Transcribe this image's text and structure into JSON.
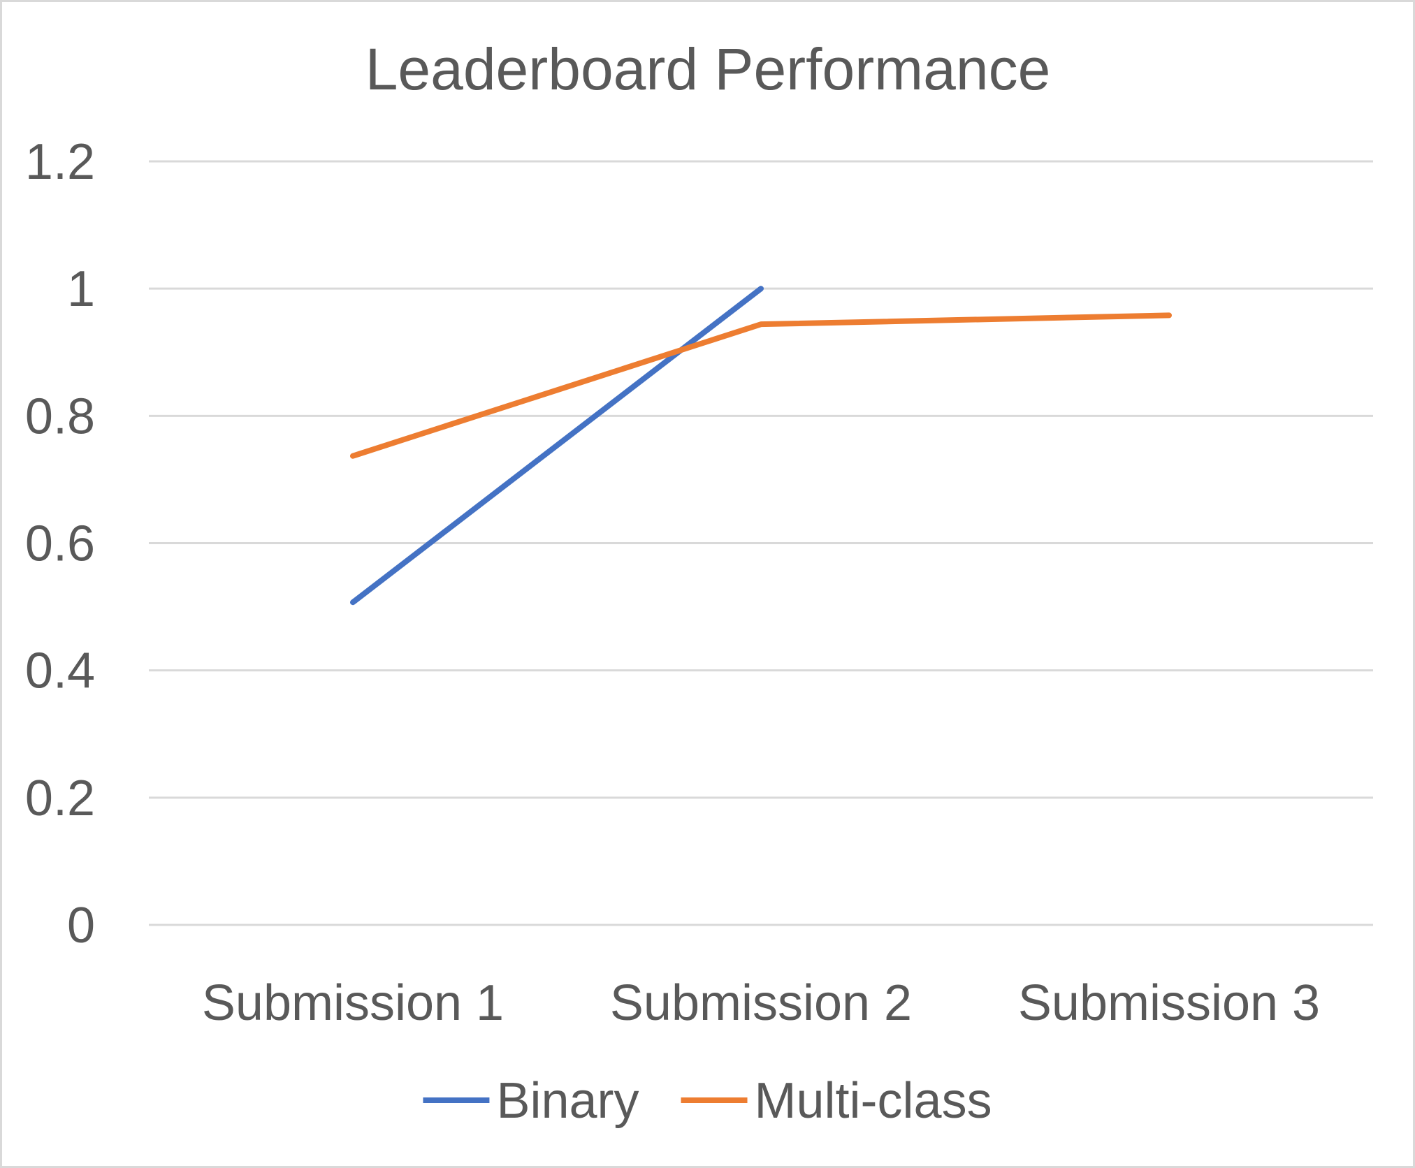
{
  "chart_data": {
    "type": "line",
    "title": "Leaderboard Performance",
    "xlabel": "",
    "ylabel": "",
    "categories": [
      "Submission 1",
      "Submission 2",
      "Submission 3"
    ],
    "ylim": [
      0,
      1.2
    ],
    "yticks": [
      0,
      0.2,
      0.4,
      0.6,
      0.8,
      1,
      1.2
    ],
    "ytick_labels": [
      "0",
      "0.2",
      "0.4",
      "0.6",
      "0.8",
      "1",
      "1.2"
    ],
    "grid": true,
    "legend_position": "bottom",
    "series": [
      {
        "name": "Binary",
        "color": "#4472c4",
        "values": [
          0.507,
          1.0,
          null
        ]
      },
      {
        "name": "Multi-class",
        "color": "#ed7d31",
        "values": [
          0.737,
          0.944,
          0.958
        ]
      }
    ]
  }
}
